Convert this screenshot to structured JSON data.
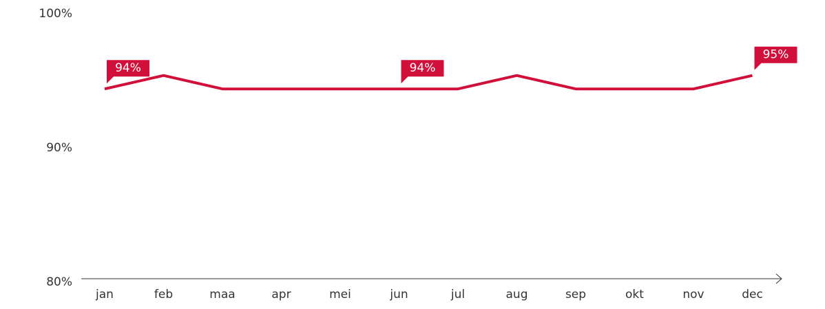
{
  "chart_data": {
    "type": "line",
    "categories": [
      "jan",
      "feb",
      "maa",
      "apr",
      "mei",
      "jun",
      "jul",
      "aug",
      "sep",
      "okt",
      "nov",
      "dec"
    ],
    "series": [
      {
        "name": null,
        "color": "#d0103a",
        "values": [
          94.4,
          95.4,
          94.4,
          94.4,
          94.4,
          94.4,
          94.4,
          95.4,
          94.4,
          94.4,
          94.4,
          95.4
        ],
        "value_labels": [
          "94%",
          null,
          null,
          null,
          null,
          "94%",
          null,
          null,
          null,
          null,
          null,
          "95%"
        ]
      }
    ],
    "ylim": [
      80,
      100
    ],
    "yticks": [
      {
        "value": 80,
        "label": "80%"
      },
      {
        "value": 90,
        "label": "90%"
      },
      {
        "value": 100,
        "label": "100%"
      }
    ]
  }
}
